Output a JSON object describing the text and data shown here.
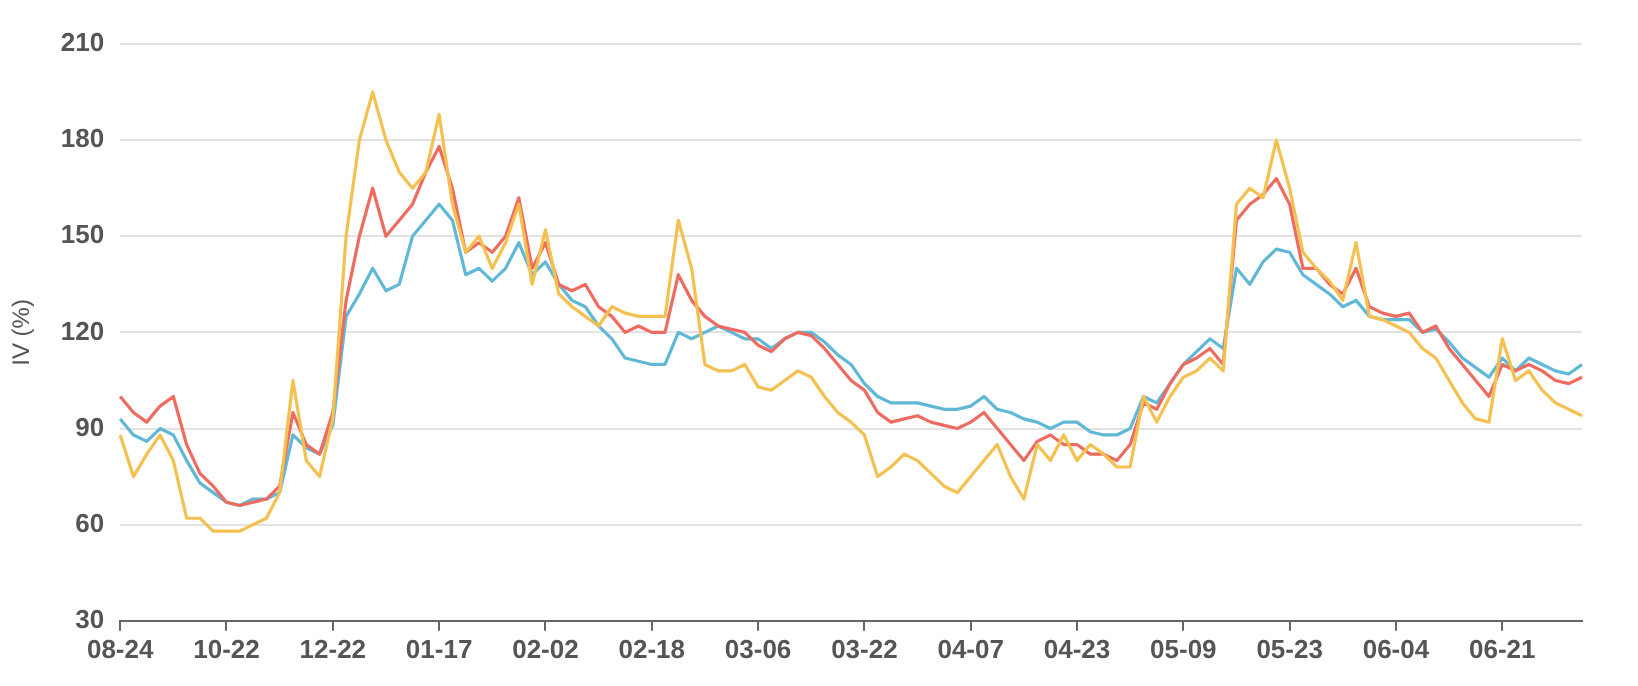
{
  "chart_data": {
    "type": "line",
    "ylabel": "IV (%)",
    "ylim": [
      30,
      210
    ],
    "yticks": [
      30,
      60,
      90,
      120,
      150,
      180,
      210
    ],
    "grid": "y",
    "legend": false,
    "marker": "none",
    "categories": [
      "08-24",
      null,
      null,
      null,
      null,
      null,
      null,
      null,
      "10-22",
      null,
      null,
      null,
      null,
      null,
      null,
      null,
      "12-22",
      null,
      null,
      null,
      null,
      null,
      null,
      null,
      "01-17",
      null,
      null,
      null,
      null,
      null,
      null,
      null,
      "02-02",
      null,
      null,
      null,
      null,
      null,
      null,
      null,
      "02-18",
      null,
      null,
      null,
      null,
      null,
      null,
      null,
      "03-06",
      null,
      null,
      null,
      null,
      null,
      null,
      null,
      "03-22",
      null,
      null,
      null,
      null,
      null,
      null,
      null,
      "04-07",
      null,
      null,
      null,
      null,
      null,
      null,
      null,
      "04-23",
      null,
      null,
      null,
      null,
      null,
      null,
      null,
      "05-09",
      null,
      null,
      null,
      null,
      null,
      null,
      null,
      "05-23",
      null,
      null,
      null,
      null,
      null,
      null,
      null,
      "06-04",
      null,
      null,
      null,
      null,
      null,
      null,
      null,
      "06-21",
      null,
      null,
      null,
      null,
      null,
      null
    ],
    "series": [
      {
        "color": "#f4c150",
        "values": [
          88,
          75,
          82,
          88,
          80,
          62,
          62,
          58,
          58,
          58,
          60,
          62,
          70,
          105,
          80,
          75,
          93,
          150,
          180,
          195,
          180,
          170,
          165,
          170,
          188,
          160,
          145,
          150,
          140,
          148,
          160,
          135,
          152,
          132,
          128,
          125,
          122,
          128,
          126,
          125,
          125,
          125,
          155,
          140,
          110,
          108,
          108,
          110,
          103,
          102,
          105,
          108,
          106,
          100,
          95,
          92,
          88,
          75,
          78,
          82,
          80,
          76,
          72,
          70,
          75,
          80,
          85,
          75,
          68,
          85,
          80,
          88,
          80,
          85,
          82,
          78,
          78,
          100,
          92,
          100,
          106,
          108,
          112,
          108,
          160,
          165,
          162,
          180,
          165,
          145,
          140,
          136,
          130,
          148,
          125,
          124,
          122,
          120,
          115,
          112,
          105,
          98,
          93,
          92,
          118,
          105,
          108,
          102,
          98,
          96,
          94
        ]
      },
      {
        "color": "#ee6b5f",
        "values": [
          100,
          95,
          92,
          97,
          100,
          85,
          76,
          72,
          67,
          66,
          67,
          68,
          72,
          95,
          85,
          82,
          95,
          130,
          150,
          165,
          150,
          155,
          160,
          170,
          178,
          165,
          145,
          148,
          145,
          150,
          162,
          140,
          148,
          135,
          133,
          135,
          128,
          125,
          120,
          122,
          120,
          120,
          138,
          130,
          125,
          122,
          121,
          120,
          116,
          114,
          118,
          120,
          119,
          115,
          110,
          105,
          102,
          95,
          92,
          93,
          94,
          92,
          91,
          90,
          92,
          95,
          90,
          85,
          80,
          86,
          88,
          85,
          85,
          82,
          82,
          80,
          85,
          98,
          96,
          104,
          110,
          112,
          115,
          110,
          155,
          160,
          163,
          168,
          160,
          140,
          140,
          135,
          132,
          140,
          128,
          126,
          125,
          126,
          120,
          122,
          115,
          110,
          105,
          100,
          110,
          108,
          110,
          108,
          105,
          104,
          106
        ]
      },
      {
        "color": "#60b8d6",
        "values": [
          93,
          88,
          86,
          90,
          88,
          80,
          73,
          70,
          67,
          66,
          68,
          68,
          70,
          88,
          84,
          82,
          91,
          125,
          132,
          140,
          133,
          135,
          150,
          155,
          160,
          155,
          138,
          140,
          136,
          140,
          148,
          138,
          142,
          135,
          130,
          128,
          122,
          118,
          112,
          111,
          110,
          110,
          120,
          118,
          120,
          122,
          120,
          118,
          118,
          115,
          118,
          120,
          120,
          117,
          113,
          110,
          104,
          100,
          98,
          98,
          98,
          97,
          96,
          96,
          97,
          100,
          96,
          95,
          93,
          92,
          90,
          92,
          92,
          89,
          88,
          88,
          90,
          100,
          98,
          104,
          110,
          114,
          118,
          115,
          140,
          135,
          142,
          146,
          145,
          138,
          135,
          132,
          128,
          130,
          125,
          124,
          124,
          124,
          120,
          121,
          117,
          112,
          109,
          106,
          112,
          108,
          112,
          110,
          108,
          107,
          110
        ]
      }
    ]
  }
}
